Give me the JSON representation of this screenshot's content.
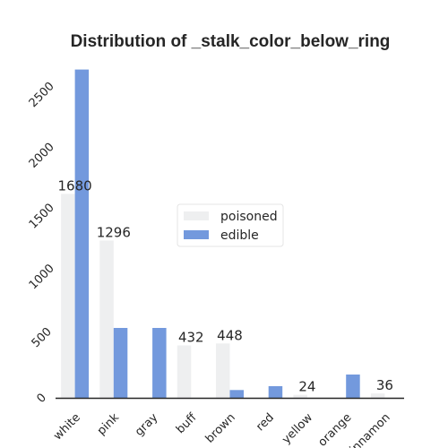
{
  "chart_data": {
    "type": "bar",
    "title": "Distribution of _stalk_color_below_ring",
    "xlabel": "",
    "ylabel": "",
    "categories": [
      "white",
      "pink",
      "gray",
      "buff",
      "brown",
      "red",
      "yellow",
      "orange",
      "cinnamon"
    ],
    "series": [
      {
        "name": "poisoned",
        "color": "#eeeff0",
        "values": [
          1680,
          1296,
          0,
          432,
          448,
          0,
          24,
          0,
          36
        ]
      },
      {
        "name": "edible",
        "color": "#7399dd",
        "values": [
          2704,
          576,
          576,
          0,
          64,
          96,
          0,
          192,
          0
        ]
      }
    ],
    "data_labels": [
      {
        "category": "white",
        "text": "1680"
      },
      {
        "category": "pink",
        "text": "1296"
      },
      {
        "category": "buff",
        "text": "432"
      },
      {
        "category": "brown",
        "text": "448"
      },
      {
        "category": "yellow",
        "text": "24"
      },
      {
        "category": "cinnamon",
        "text": "36"
      }
    ],
    "yticks": [
      0,
      500,
      1000,
      1500,
      2000,
      2500
    ],
    "ylim": [
      0,
      2800
    ],
    "grid": false,
    "legend": "center"
  }
}
